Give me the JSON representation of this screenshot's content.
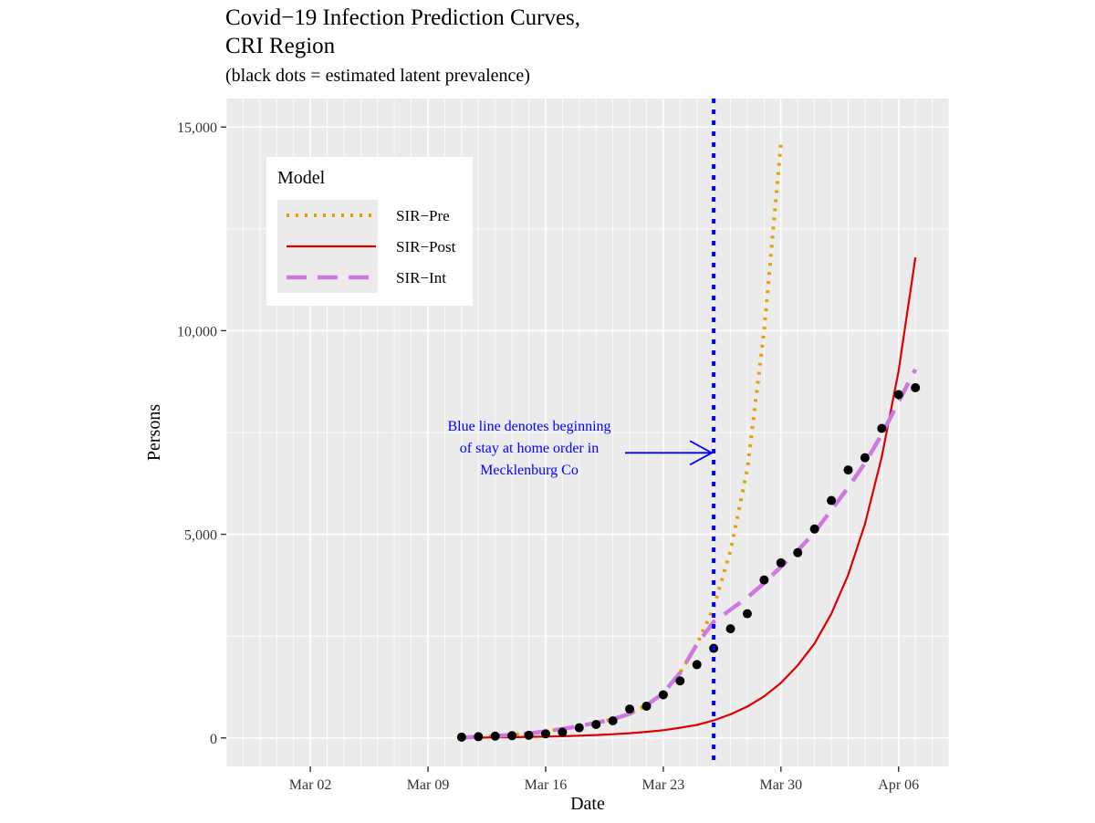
{
  "chart_data": {
    "type": "line",
    "title": "Covid−19 Infection Prediction Curves,\nCRI Region",
    "subtitle": "(black dots = estimated latent prevalence)",
    "xlabel": "Date",
    "ylabel": "Persons",
    "x_range": [
      "2020-02-26",
      "2020-04-09"
    ],
    "ylim": [
      -700,
      15700
    ],
    "x_ticks": [
      {
        "date": "2020-03-02",
        "label": "Mar 02"
      },
      {
        "date": "2020-03-09",
        "label": "Mar 09"
      },
      {
        "date": "2020-03-16",
        "label": "Mar 16"
      },
      {
        "date": "2020-03-23",
        "label": "Mar 23"
      },
      {
        "date": "2020-03-30",
        "label": "Mar 30"
      },
      {
        "date": "2020-04-06",
        "label": "Apr 06"
      }
    ],
    "y_ticks": [
      {
        "value": 0,
        "label": "0"
      },
      {
        "value": 5000,
        "label": "5,000"
      },
      {
        "value": 10000,
        "label": "10,000"
      },
      {
        "value": 15000,
        "label": "15,000"
      }
    ],
    "grid": true,
    "panel_background": "#ebebeb",
    "legend": {
      "title": "Model",
      "position": "top-left",
      "entries": [
        {
          "label": "SIR−Pre",
          "color": "#e69f00",
          "style": "dotted"
        },
        {
          "label": "SIR−Post",
          "color": "#dd0000",
          "style": "solid"
        },
        {
          "label": "SIR−Int",
          "color": "#cc79e0",
          "style": "dashed"
        }
      ]
    },
    "series": [
      {
        "name": "SIR−Pre",
        "color": "#e69f00",
        "style": "dotted",
        "points": [
          [
            "2020-03-11",
            10
          ],
          [
            "2020-03-12",
            25
          ],
          [
            "2020-03-13",
            45
          ],
          [
            "2020-03-14",
            75
          ],
          [
            "2020-03-15",
            110
          ],
          [
            "2020-03-16",
            160
          ],
          [
            "2020-03-17",
            220
          ],
          [
            "2020-03-18",
            290
          ],
          [
            "2020-03-19",
            370
          ],
          [
            "2020-03-20",
            460
          ],
          [
            "2020-03-21",
            590
          ],
          [
            "2020-03-22",
            800
          ],
          [
            "2020-03-23",
            1100
          ],
          [
            "2020-03-24",
            1600
          ],
          [
            "2020-03-25",
            2300
          ],
          [
            "2020-03-26",
            3200
          ],
          [
            "2020-03-27",
            4600
          ],
          [
            "2020-03-28",
            6600
          ],
          [
            "2020-03-29",
            10000
          ],
          [
            "2020-03-30",
            14600
          ]
        ]
      },
      {
        "name": "SIR−Post",
        "color": "#dd0000",
        "style": "solid",
        "points": [
          [
            "2020-03-11",
            5
          ],
          [
            "2020-03-12",
            8
          ],
          [
            "2020-03-13",
            12
          ],
          [
            "2020-03-14",
            18
          ],
          [
            "2020-03-15",
            25
          ],
          [
            "2020-03-16",
            32
          ],
          [
            "2020-03-17",
            42
          ],
          [
            "2020-03-18",
            55
          ],
          [
            "2020-03-19",
            70
          ],
          [
            "2020-03-20",
            90
          ],
          [
            "2020-03-21",
            115
          ],
          [
            "2020-03-22",
            150
          ],
          [
            "2020-03-23",
            190
          ],
          [
            "2020-03-24",
            250
          ],
          [
            "2020-03-25",
            320
          ],
          [
            "2020-03-26",
            430
          ],
          [
            "2020-03-27",
            580
          ],
          [
            "2020-03-28",
            770
          ],
          [
            "2020-03-29",
            1020
          ],
          [
            "2020-03-30",
            1350
          ],
          [
            "2020-03-31",
            1780
          ],
          [
            "2020-04-01",
            2320
          ],
          [
            "2020-04-02",
            3050
          ],
          [
            "2020-04-03",
            4000
          ],
          [
            "2020-04-04",
            5250
          ],
          [
            "2020-04-05",
            6900
          ],
          [
            "2020-04-06",
            9000
          ],
          [
            "2020-04-07",
            11800
          ]
        ]
      },
      {
        "name": "SIR−Int",
        "color": "#cc79e0",
        "style": "dashed",
        "points": [
          [
            "2020-03-11",
            10
          ],
          [
            "2020-03-12",
            25
          ],
          [
            "2020-03-13",
            45
          ],
          [
            "2020-03-14",
            75
          ],
          [
            "2020-03-15",
            110
          ],
          [
            "2020-03-16",
            160
          ],
          [
            "2020-03-17",
            220
          ],
          [
            "2020-03-18",
            290
          ],
          [
            "2020-03-19",
            370
          ],
          [
            "2020-03-20",
            460
          ],
          [
            "2020-03-21",
            590
          ],
          [
            "2020-03-22",
            800
          ],
          [
            "2020-03-23",
            1100
          ],
          [
            "2020-03-24",
            1600
          ],
          [
            "2020-03-25",
            2300
          ],
          [
            "2020-03-26",
            2850
          ],
          [
            "2020-03-27",
            3150
          ],
          [
            "2020-03-28",
            3450
          ],
          [
            "2020-03-29",
            3800
          ],
          [
            "2020-03-30",
            4200
          ],
          [
            "2020-03-31",
            4600
          ],
          [
            "2020-04-01",
            5050
          ],
          [
            "2020-04-02",
            5600
          ],
          [
            "2020-04-03",
            6150
          ],
          [
            "2020-04-04",
            6750
          ],
          [
            "2020-04-05",
            7450
          ],
          [
            "2020-04-06",
            8250
          ],
          [
            "2020-04-07",
            9050
          ]
        ]
      },
      {
        "name": "estimated latent prevalence",
        "color": "#000000",
        "style": "points",
        "points": [
          [
            "2020-03-11",
            20
          ],
          [
            "2020-03-12",
            30
          ],
          [
            "2020-03-13",
            45
          ],
          [
            "2020-03-14",
            55
          ],
          [
            "2020-03-15",
            65
          ],
          [
            "2020-03-16",
            100
          ],
          [
            "2020-03-17",
            140
          ],
          [
            "2020-03-18",
            250
          ],
          [
            "2020-03-19",
            330
          ],
          [
            "2020-03-20",
            420
          ],
          [
            "2020-03-21",
            710
          ],
          [
            "2020-03-22",
            780
          ],
          [
            "2020-03-23",
            1060
          ],
          [
            "2020-03-24",
            1400
          ],
          [
            "2020-03-25",
            1800
          ],
          [
            "2020-03-26",
            2200
          ],
          [
            "2020-03-27",
            2680
          ],
          [
            "2020-03-28",
            3050
          ],
          [
            "2020-03-29",
            3880
          ],
          [
            "2020-03-30",
            4300
          ],
          [
            "2020-03-31",
            4550
          ],
          [
            "2020-04-01",
            5130
          ],
          [
            "2020-04-02",
            5830
          ],
          [
            "2020-04-03",
            6580
          ],
          [
            "2020-04-04",
            6880
          ],
          [
            "2020-04-05",
            7600
          ],
          [
            "2020-04-06",
            8430
          ],
          [
            "2020-04-07",
            8600
          ]
        ]
      }
    ],
    "vline": {
      "date": "2020-03-26",
      "color": "#0000ff",
      "style": "dotted"
    },
    "annotation": {
      "lines": [
        "Blue line denotes beginning",
        "of stay at home order in",
        "Mecklenburg Co"
      ],
      "color": "#0000ff",
      "arrow_to": [
        "2020-03-26",
        7000
      ]
    }
  }
}
